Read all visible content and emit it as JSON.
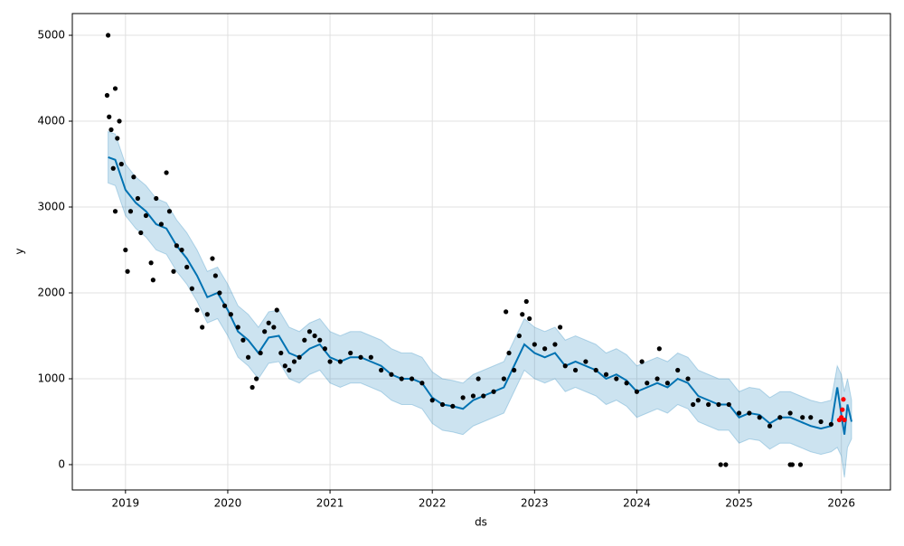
{
  "chart_data": {
    "type": "forecast",
    "x_label": "ds",
    "y_label": "y",
    "xlim": [
      2018.48,
      2026.48
    ],
    "xticks": [
      2019,
      2020,
      2021,
      2022,
      2023,
      2024,
      2025,
      2026
    ],
    "ylim": [
      -295,
      5253
    ],
    "yticks": [
      0,
      1000,
      2000,
      3000,
      4000,
      5000
    ],
    "grid": true,
    "observed": {
      "color": "#000000",
      "x": [
        2018.83,
        2018.82,
        2018.84,
        2018.86,
        2018.88,
        2018.9,
        2018.92,
        2018.94,
        2018.96,
        2018.9,
        2019.0,
        2019.02,
        2019.05,
        2019.08,
        2019.12,
        2019.15,
        2019.2,
        2019.25,
        2019.27,
        2019.3,
        2019.35,
        2019.4,
        2019.43,
        2019.47,
        2019.5,
        2019.55,
        2019.6,
        2019.65,
        2019.7,
        2019.75,
        2019.8,
        2019.85,
        2019.88,
        2019.92,
        2019.97,
        2020.03,
        2020.1,
        2020.15,
        2020.2,
        2020.24,
        2020.28,
        2020.32,
        2020.36,
        2020.4,
        2020.45,
        2020.48,
        2020.52,
        2020.56,
        2020.6,
        2020.65,
        2020.7,
        2020.75,
        2020.8,
        2020.85,
        2020.9,
        2020.95,
        2021.0,
        2021.1,
        2021.2,
        2021.3,
        2021.4,
        2021.5,
        2021.6,
        2021.7,
        2021.8,
        2021.9,
        2022.0,
        2022.1,
        2022.2,
        2022.3,
        2022.4,
        2022.45,
        2022.5,
        2022.6,
        2022.7,
        2022.72,
        2022.75,
        2022.8,
        2022.85,
        2022.88,
        2022.92,
        2022.95,
        2023.0,
        2023.1,
        2023.2,
        2023.25,
        2023.3,
        2023.4,
        2023.5,
        2023.6,
        2023.7,
        2023.8,
        2023.9,
        2024.0,
        2024.05,
        2024.1,
        2024.2,
        2024.22,
        2024.3,
        2024.4,
        2024.5,
        2024.55,
        2024.6,
        2024.7,
        2024.8,
        2024.82,
        2024.87,
        2024.9,
        2025.0,
        2025.1,
        2025.2,
        2025.3,
        2025.4,
        2025.5,
        2025.5,
        2025.52,
        2025.6,
        2025.62,
        2025.7,
        2025.8,
        2025.9
      ],
      "y": [
        5000,
        4300,
        4050,
        3900,
        3450,
        4380,
        3800,
        4000,
        3500,
        2950,
        2500,
        2250,
        2950,
        3350,
        3100,
        2700,
        2900,
        2350,
        2150,
        3100,
        2800,
        3400,
        2950,
        2250,
        2550,
        2500,
        2300,
        2050,
        1800,
        1600,
        1750,
        2400,
        2200,
        2000,
        1850,
        1750,
        1600,
        1450,
        1250,
        900,
        1000,
        1300,
        1550,
        1650,
        1600,
        1800,
        1300,
        1150,
        1100,
        1200,
        1250,
        1450,
        1550,
        1500,
        1450,
        1350,
        1200,
        1200,
        1300,
        1250,
        1250,
        1100,
        1050,
        1000,
        1000,
        950,
        750,
        700,
        680,
        780,
        800,
        1000,
        800,
        850,
        1000,
        1780,
        1300,
        1100,
        1500,
        1750,
        1900,
        1700,
        1400,
        1350,
        1400,
        1600,
        1150,
        1100,
        1200,
        1100,
        1050,
        1000,
        950,
        850,
        1200,
        950,
        1000,
        1350,
        950,
        1100,
        1000,
        700,
        750,
        700,
        700,
        0,
        0,
        700,
        600,
        600,
        550,
        450,
        550,
        600,
        0,
        0,
        0,
        550,
        550,
        500,
        470
      ]
    },
    "test": {
      "color": "#ff0000",
      "x": [
        2025.98,
        2026.0,
        2026.02,
        2026.03,
        2026.01
      ],
      "y": [
        520,
        550,
        760,
        520,
        640
      ]
    },
    "forecast": {
      "color": "#0072b2",
      "x": [
        2018.83,
        2018.9,
        2019.0,
        2019.1,
        2019.2,
        2019.3,
        2019.4,
        2019.5,
        2019.6,
        2019.7,
        2019.8,
        2019.9,
        2020.0,
        2020.1,
        2020.2,
        2020.3,
        2020.4,
        2020.5,
        2020.6,
        2020.7,
        2020.8,
        2020.9,
        2021.0,
        2021.1,
        2021.2,
        2021.3,
        2021.4,
        2021.5,
        2021.6,
        2021.7,
        2021.8,
        2021.9,
        2022.0,
        2022.1,
        2022.2,
        2022.3,
        2022.4,
        2022.5,
        2022.6,
        2022.7,
        2022.8,
        2022.9,
        2023.0,
        2023.1,
        2023.2,
        2023.3,
        2023.4,
        2023.5,
        2023.6,
        2023.7,
        2023.8,
        2023.9,
        2024.0,
        2024.1,
        2024.2,
        2024.3,
        2024.4,
        2024.5,
        2024.6,
        2024.7,
        2024.8,
        2024.9,
        2025.0,
        2025.1,
        2025.2,
        2025.3,
        2025.4,
        2025.5,
        2025.6,
        2025.7,
        2025.8,
        2025.9,
        2025.96,
        2026.0,
        2026.03,
        2026.06,
        2026.1
      ],
      "yhat": [
        3580,
        3550,
        3200,
        3050,
        2950,
        2800,
        2750,
        2550,
        2400,
        2200,
        1950,
        2000,
        1800,
        1550,
        1450,
        1300,
        1480,
        1500,
        1300,
        1250,
        1350,
        1400,
        1250,
        1200,
        1250,
        1250,
        1200,
        1150,
        1050,
        1000,
        1000,
        950,
        780,
        700,
        680,
        650,
        750,
        800,
        850,
        900,
        1150,
        1400,
        1300,
        1250,
        1300,
        1150,
        1200,
        1150,
        1100,
        1000,
        1050,
        980,
        850,
        900,
        950,
        900,
        1000,
        950,
        800,
        750,
        700,
        700,
        550,
        600,
        580,
        480,
        550,
        550,
        500,
        450,
        420,
        450,
        900,
        580,
        350,
        700,
        500
      ],
      "lower": [
        3280,
        3250,
        2900,
        2750,
        2650,
        2500,
        2450,
        2250,
        2100,
        1900,
        1650,
        1700,
        1500,
        1250,
        1150,
        1000,
        1180,
        1200,
        1000,
        950,
        1050,
        1100,
        950,
        900,
        950,
        950,
        900,
        850,
        750,
        700,
        700,
        650,
        480,
        400,
        380,
        350,
        450,
        500,
        550,
        600,
        850,
        1100,
        1000,
        950,
        1000,
        850,
        900,
        850,
        800,
        700,
        750,
        680,
        550,
        600,
        650,
        600,
        700,
        650,
        500,
        450,
        400,
        400,
        250,
        300,
        280,
        180,
        250,
        250,
        200,
        150,
        120,
        150,
        200,
        100,
        -150,
        200,
        300
      ],
      "upper": [
        3880,
        3850,
        3500,
        3350,
        3250,
        3100,
        3050,
        2850,
        2700,
        2500,
        2250,
        2300,
        2100,
        1850,
        1750,
        1600,
        1780,
        1800,
        1600,
        1550,
        1650,
        1700,
        1550,
        1500,
        1550,
        1550,
        1500,
        1450,
        1350,
        1300,
        1300,
        1250,
        1080,
        1000,
        980,
        950,
        1050,
        1100,
        1150,
        1200,
        1450,
        1700,
        1600,
        1550,
        1600,
        1450,
        1500,
        1450,
        1400,
        1300,
        1350,
        1280,
        1150,
        1200,
        1250,
        1200,
        1300,
        1250,
        1100,
        1050,
        1000,
        1000,
        850,
        900,
        880,
        780,
        850,
        850,
        800,
        750,
        720,
        750,
        1150,
        1050,
        850,
        1000,
        750
      ]
    }
  }
}
